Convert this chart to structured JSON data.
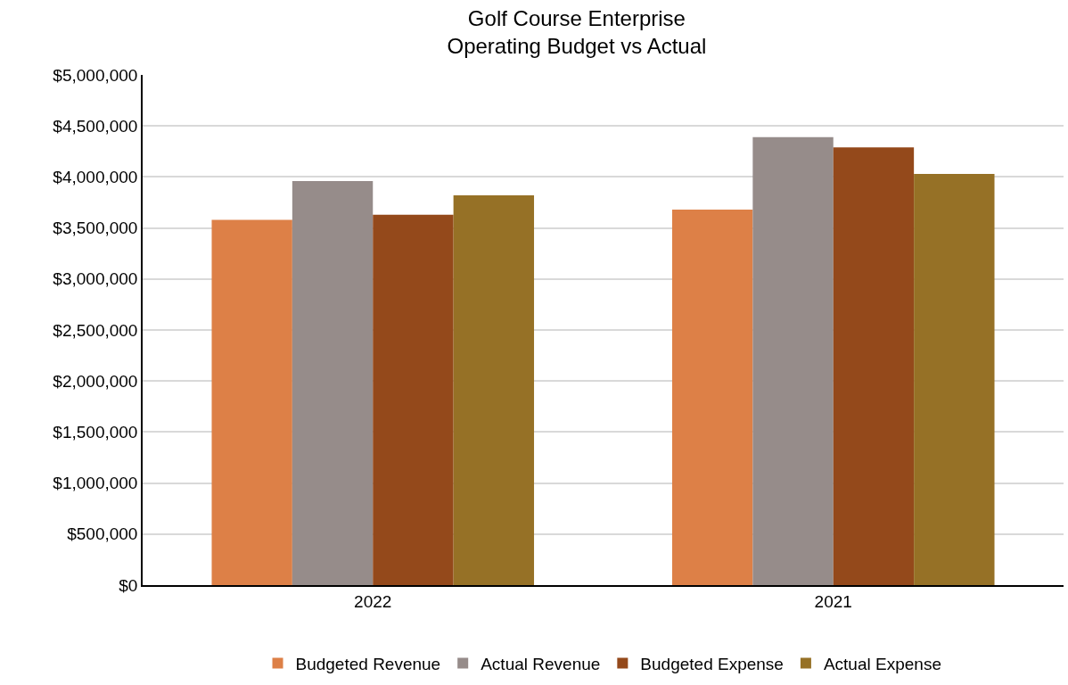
{
  "chart_data": {
    "type": "bar",
    "title": "Golf Course Enterprise\nOperating Budget vs Actual",
    "categories": [
      "2022",
      "2021"
    ],
    "series": [
      {
        "name": "Budgeted Revenue",
        "color": "#dd8047",
        "values": [
          3580000,
          3680000
        ]
      },
      {
        "name": "Actual Revenue",
        "color": "#968c8a",
        "values": [
          3960000,
          4390000
        ]
      },
      {
        "name": "Budgeted Expense",
        "color": "#94491b",
        "values": [
          3630000,
          4290000
        ]
      },
      {
        "name": "Actual Expense",
        "color": "#967126",
        "values": [
          3820000,
          4030000
        ]
      }
    ],
    "ylim": [
      0,
      5000000
    ],
    "yticks": [
      {
        "value": 0,
        "label": "$0"
      },
      {
        "value": 500000,
        "label": "$500,000"
      },
      {
        "value": 1000000,
        "label": "$1,000,000"
      },
      {
        "value": 1500000,
        "label": "$1,500,000"
      },
      {
        "value": 2000000,
        "label": "$2,000,000"
      },
      {
        "value": 2500000,
        "label": "$2,500,000"
      },
      {
        "value": 3000000,
        "label": "$3,000,000"
      },
      {
        "value": 3500000,
        "label": "$3,500,000"
      },
      {
        "value": 4000000,
        "label": "$4,000,000"
      },
      {
        "value": 4500000,
        "label": "$4,500,000"
      },
      {
        "value": 5000000,
        "label": "$5,000,000"
      }
    ],
    "grid": "y",
    "legend": "bottom"
  }
}
